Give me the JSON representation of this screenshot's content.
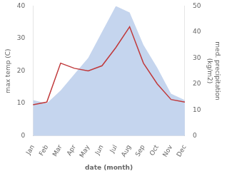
{
  "chart_data": {
    "type": "line",
    "xlabel": "date (month)",
    "ylabel": "max temp (C)",
    "y2label": "med. precipitation\n(kg/m2)",
    "categories": [
      "Jan",
      "Feb",
      "Mar",
      "Apr",
      "May",
      "Jun",
      "Jul",
      "Aug",
      "Sep",
      "Oct",
      "Nov",
      "Dec"
    ],
    "series": [
      {
        "type": "area",
        "color": "#c5d5ee",
        "values": [
          11,
          10,
          14,
          19,
          24,
          32,
          40,
          38,
          28,
          21,
          13,
          11
        ]
      },
      {
        "type": "line",
        "color": "#c0393b",
        "axis": "y2",
        "values": [
          12,
          13,
          28,
          26,
          25,
          27,
          34,
          42,
          28,
          20,
          14,
          13
        ]
      }
    ],
    "ylim": [
      0,
      40
    ],
    "yticks": [
      0,
      10,
      20,
      30,
      40
    ],
    "y2lim": [
      0,
      50
    ],
    "y2ticks": [
      0,
      10,
      20,
      30,
      40,
      50
    ],
    "grid": false
  }
}
